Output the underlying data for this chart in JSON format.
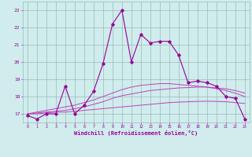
{
  "x_values": [
    0,
    1,
    2,
    3,
    4,
    5,
    6,
    7,
    8,
    9,
    10,
    11,
    12,
    13,
    14,
    15,
    16,
    17,
    18,
    19,
    20,
    21,
    22,
    23
  ],
  "main_line": [
    16.9,
    16.7,
    17.0,
    17.0,
    18.6,
    17.0,
    17.5,
    18.3,
    19.9,
    22.2,
    23.0,
    20.0,
    21.6,
    21.1,
    21.2,
    21.2,
    20.4,
    18.8,
    18.9,
    18.8,
    18.6,
    18.0,
    17.9,
    16.7
  ],
  "trend_line1": [
    17.0,
    17.0,
    17.05,
    17.1,
    17.1,
    17.15,
    17.2,
    17.25,
    17.3,
    17.35,
    17.4,
    17.45,
    17.5,
    17.55,
    17.6,
    17.65,
    17.68,
    17.7,
    17.72,
    17.73,
    17.72,
    17.7,
    17.65,
    17.6
  ],
  "trend_line2": [
    17.0,
    17.05,
    17.1,
    17.15,
    17.2,
    17.3,
    17.4,
    17.55,
    17.7,
    17.9,
    18.05,
    18.15,
    18.25,
    18.35,
    18.4,
    18.45,
    18.5,
    18.52,
    18.55,
    18.55,
    18.5,
    18.45,
    18.35,
    18.2
  ],
  "trend_line3": [
    17.0,
    17.1,
    17.2,
    17.3,
    17.4,
    17.5,
    17.65,
    17.8,
    18.0,
    18.2,
    18.4,
    18.55,
    18.65,
    18.7,
    18.75,
    18.75,
    18.7,
    18.65,
    18.6,
    18.55,
    18.45,
    18.35,
    18.2,
    18.0
  ],
  "main_color": "#990099",
  "trend_color": "#bb44bb",
  "bg_color": "#d0ecec",
  "grid_color": "#99bbbb",
  "xlabel": "Windchill (Refroidissement éolien,°C)",
  "ylim": [
    16.5,
    23.5
  ],
  "xlim": [
    -0.5,
    23.5
  ],
  "yticks": [
    17,
    18,
    19,
    20,
    21,
    22,
    23
  ],
  "xticks": [
    0,
    1,
    2,
    3,
    4,
    5,
    6,
    7,
    8,
    9,
    10,
    11,
    12,
    13,
    14,
    15,
    16,
    17,
    18,
    19,
    20,
    21,
    22,
    23
  ]
}
